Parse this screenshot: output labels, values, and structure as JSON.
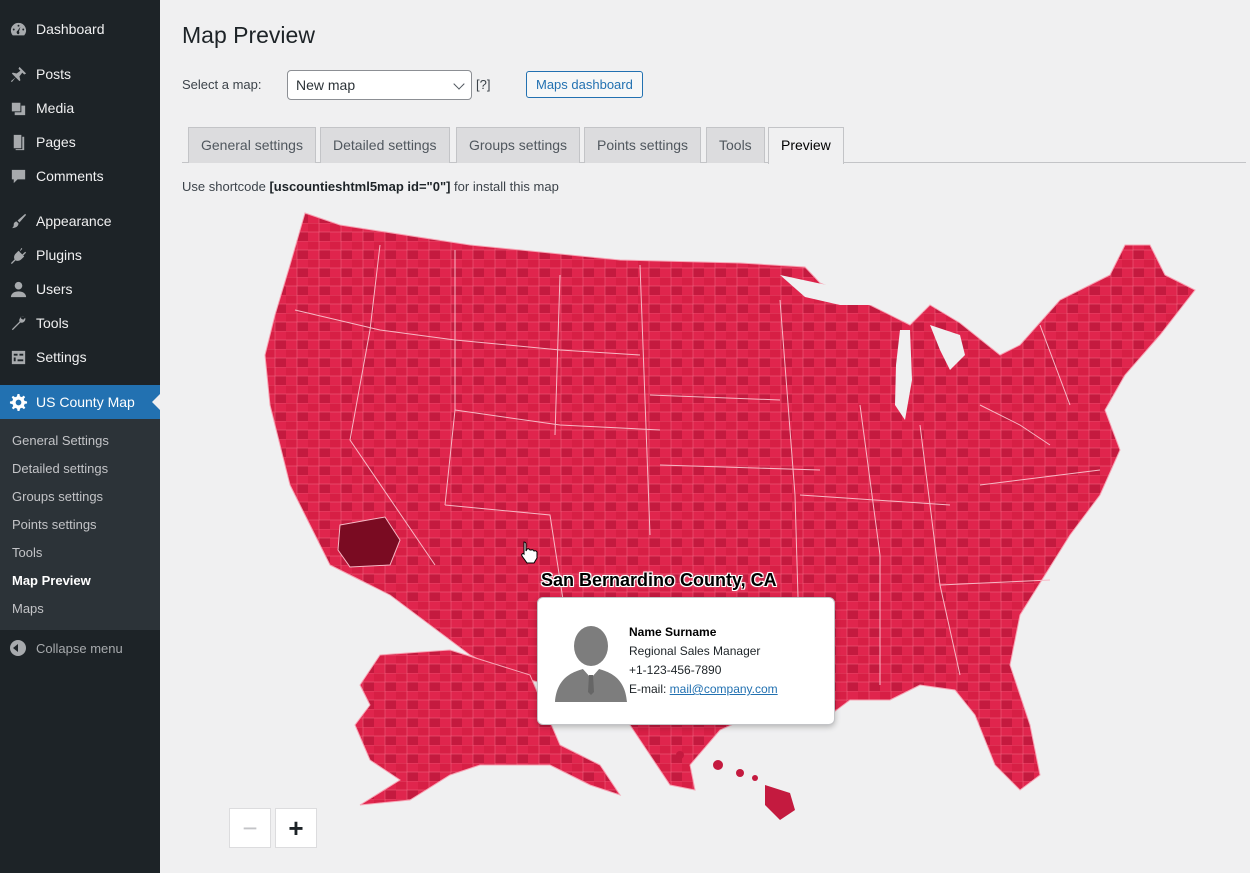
{
  "sidebar": {
    "items": [
      {
        "label": "Dashboard",
        "icon": "dashboard-icon"
      },
      {
        "label": "Posts",
        "icon": "pin-icon"
      },
      {
        "label": "Media",
        "icon": "media-icon"
      },
      {
        "label": "Pages",
        "icon": "pages-icon"
      },
      {
        "label": "Comments",
        "icon": "comment-icon"
      },
      {
        "label": "Appearance",
        "icon": "brush-icon"
      },
      {
        "label": "Plugins",
        "icon": "plugin-icon"
      },
      {
        "label": "Users",
        "icon": "user-icon"
      },
      {
        "label": "Tools",
        "icon": "wrench-icon"
      },
      {
        "label": "Settings",
        "icon": "settings-icon"
      },
      {
        "label": "US County Map",
        "icon": "gear-icon"
      }
    ],
    "submenu": [
      "General Settings",
      "Detailed settings",
      "Groups settings",
      "Points settings",
      "Tools",
      "Map Preview",
      "Maps"
    ],
    "collapse_label": "Collapse menu"
  },
  "header": {
    "title": "Map Preview",
    "select_label": "Select a map:",
    "select_value": "New map",
    "help": "[?]",
    "dashboard_button": "Maps dashboard"
  },
  "tabs": [
    "General settings",
    "Detailed settings",
    "Groups settings",
    "Points settings",
    "Tools",
    "Preview"
  ],
  "shortcode": {
    "prefix": "Use shortcode ",
    "code": "[uscountieshtml5map id=\"0\"]",
    "suffix": " for install this map"
  },
  "map": {
    "hovered_county": "San Bernardino County, CA",
    "fill_color": "#e0254d",
    "hover_color": "#7a0b22",
    "zoom_out": "−",
    "zoom_in": "+"
  },
  "tooltip": {
    "name": "Name Surname",
    "role": "Regional Sales Manager",
    "phone": "+1-123-456-7890",
    "email_label": "E-mail: ",
    "email": "mail@company.com"
  }
}
